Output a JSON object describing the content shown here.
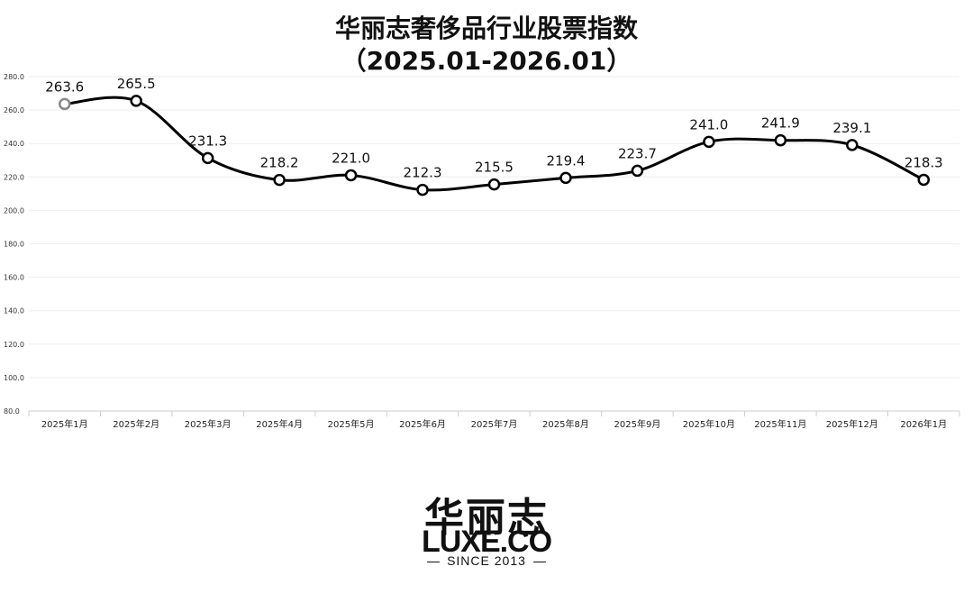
{
  "chart_data": {
    "type": "line",
    "title": "华丽志奢侈品行业股票指数",
    "subtitle": "（2025.01-2026.01）",
    "categories": [
      "2025年1月",
      "2025年2月",
      "2025年3月",
      "2025年4月",
      "2025年5月",
      "2025年6月",
      "2025年7月",
      "2025年8月",
      "2025年9月",
      "2025年10月",
      "2025年11月",
      "2025年12月",
      "2026年1月"
    ],
    "values": [
      263.6,
      265.5,
      231.3,
      218.2,
      221.0,
      212.3,
      215.5,
      219.4,
      223.7,
      241.0,
      241.9,
      239.1,
      218.3
    ],
    "value_labels": [
      "263.6",
      "265.5",
      "231.3",
      "218.2",
      "221.0",
      "212.3",
      "215.5",
      "219.4",
      "223.7",
      "241.0",
      "241.9",
      "239.1",
      "218.3"
    ],
    "ylim": [
      80,
      280
    ],
    "yticks": [
      "80.0",
      "100.0",
      "120.0",
      "140.0",
      "160.0",
      "180.0",
      "200.0",
      "220.0",
      "240.0",
      "260.0",
      "280.0"
    ],
    "xlabel": "",
    "ylabel": "",
    "grid": true,
    "line_color": "#000000",
    "first_marker_color": "#888888"
  },
  "logo": {
    "cn": "华丽志",
    "en": "LUXE.CO",
    "since": "SINCE 2013"
  }
}
